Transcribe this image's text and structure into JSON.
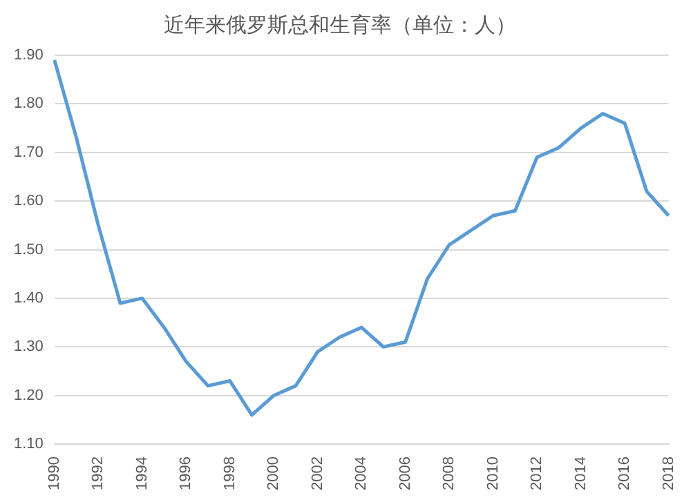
{
  "chart_data": {
    "type": "line",
    "title": "近年来俄罗斯总和生育率（单位：人）",
    "categories": [
      "1990",
      null,
      "1992",
      null,
      "1994",
      null,
      "1996",
      null,
      "1998",
      null,
      "2000",
      null,
      "2002",
      null,
      "2004",
      null,
      "2006",
      null,
      "2008",
      null,
      "2010",
      null,
      "2012",
      null,
      "2014",
      null,
      "2016",
      null,
      "2018"
    ],
    "values": [
      1.89,
      1.73,
      1.55,
      1.39,
      1.4,
      1.34,
      1.27,
      1.22,
      1.23,
      1.16,
      1.2,
      1.22,
      1.29,
      1.32,
      1.34,
      1.3,
      1.31,
      1.44,
      1.51,
      1.54,
      1.57,
      1.58,
      1.69,
      1.71,
      1.75,
      1.78,
      1.76,
      1.62,
      1.57
    ],
    "color": "#5b9bd5",
    "ylim": [
      1.1,
      1.9
    ],
    "yticks": [
      {
        "value": 1.1,
        "label": "1.10"
      },
      {
        "value": 1.2,
        "label": "1.20"
      },
      {
        "value": 1.3,
        "label": "1.30"
      },
      {
        "value": 1.4,
        "label": "1.40"
      },
      {
        "value": 1.5,
        "label": "1.50"
      },
      {
        "value": 1.6,
        "label": "1.60"
      },
      {
        "value": 1.7,
        "label": "1.70"
      },
      {
        "value": 1.8,
        "label": "1.80"
      },
      {
        "value": 1.9,
        "label": "1.90"
      }
    ],
    "grid": "y",
    "marker": "none",
    "line_style": "solid",
    "legend": false
  }
}
